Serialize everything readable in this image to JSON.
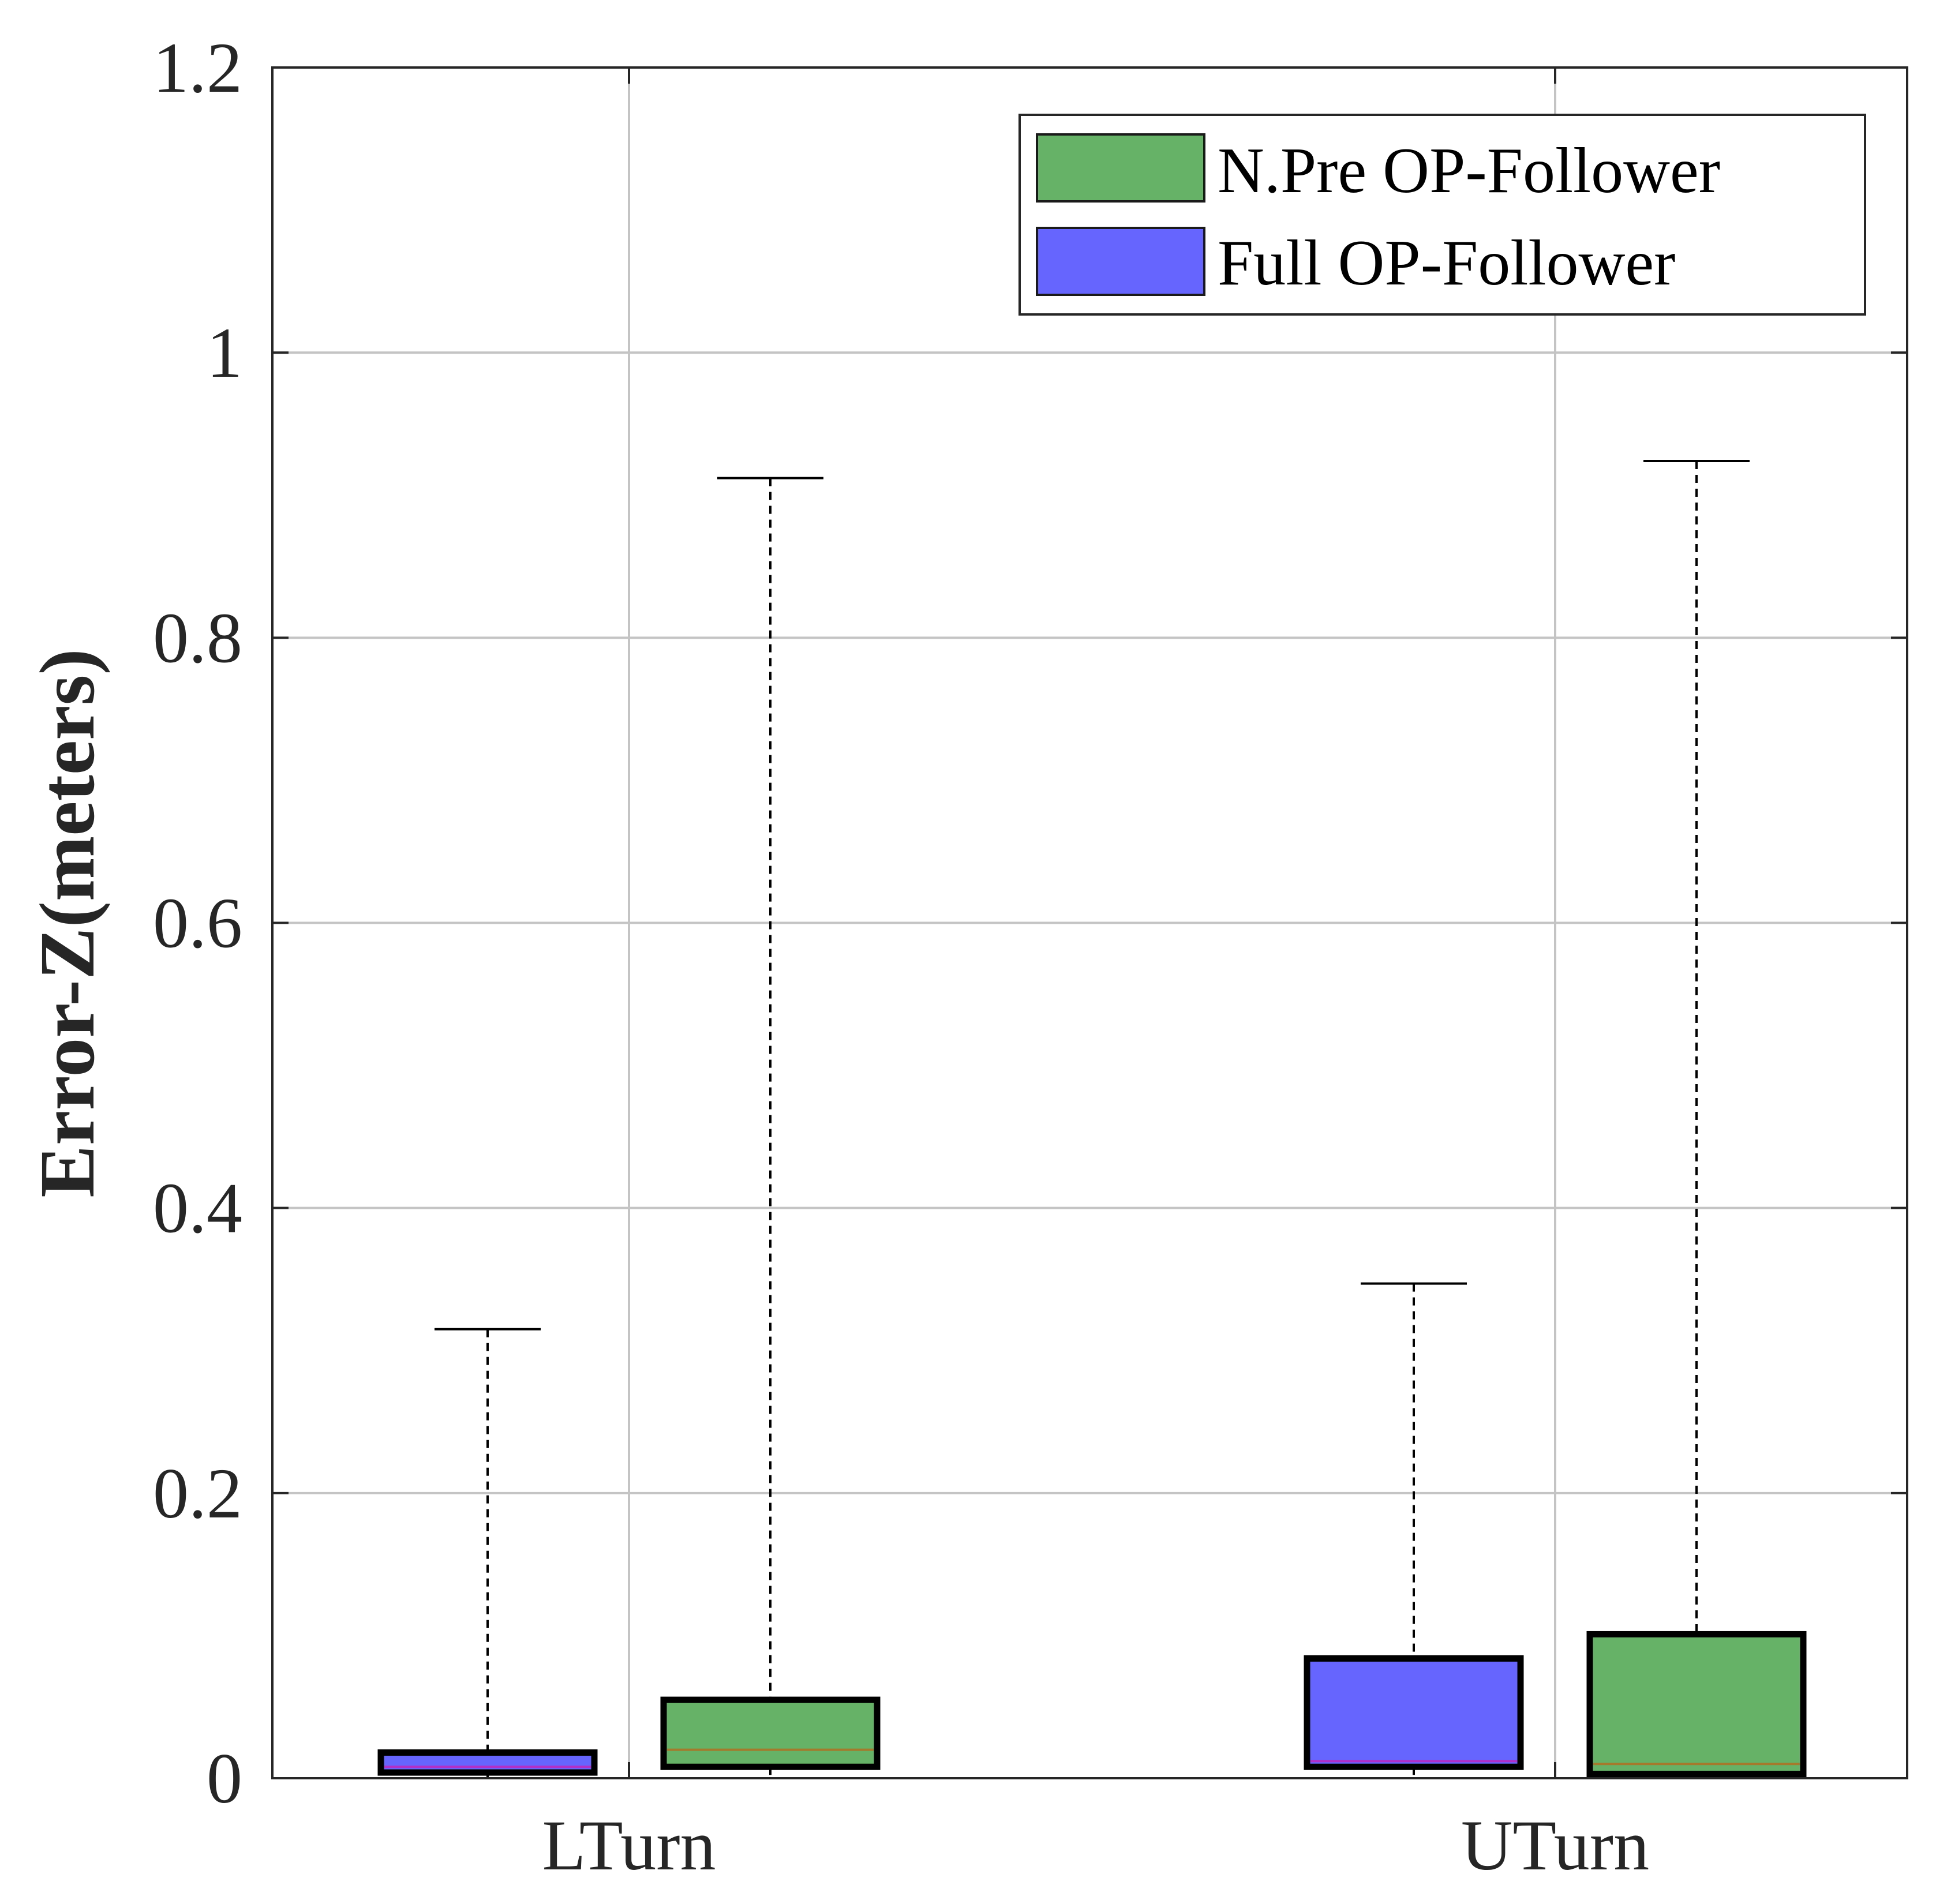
{
  "chart_data": {
    "type": "boxplot",
    "title": "",
    "xlabel": "",
    "ylabel": "Error-Z(meters)",
    "ylim": [
      0,
      1.2
    ],
    "yticks": [
      0,
      0.2,
      0.4,
      0.6,
      0.8,
      1,
      1.2
    ],
    "ytick_labels": [
      "0",
      "0.2",
      "0.4",
      "0.6",
      "0.8",
      "1",
      "1.2"
    ],
    "grid": true,
    "legend_position": "top-right",
    "categories": [
      "LTurn",
      "UTurn"
    ],
    "legend": [
      {
        "label": "N.Pre OP-Follower",
        "color": "#66b266"
      },
      {
        "label": "Full OP-Follower",
        "color": "#6666ff"
      }
    ],
    "series": [
      {
        "name": "Full OP-Follower",
        "color": "#6666ff",
        "median_color": "#b030c8",
        "boxes": [
          {
            "category": "LTurn",
            "min": 0.0,
            "q1": 0.004,
            "median": 0.008,
            "q3": 0.018,
            "max": 0.315
          },
          {
            "category": "UTurn",
            "min": 0.0,
            "q1": 0.008,
            "median": 0.012,
            "q3": 0.084,
            "max": 0.347
          }
        ]
      },
      {
        "name": "N.Pre OP-Follower",
        "color": "#66b266",
        "median_color": "#a57a2c",
        "boxes": [
          {
            "category": "LTurn",
            "min": 0.0,
            "q1": 0.008,
            "median": 0.02,
            "q3": 0.055,
            "max": 0.912
          },
          {
            "category": "UTurn",
            "min": 0.0,
            "q1": 0.003,
            "median": 0.01,
            "q3": 0.101,
            "max": 0.924
          }
        ]
      }
    ]
  }
}
